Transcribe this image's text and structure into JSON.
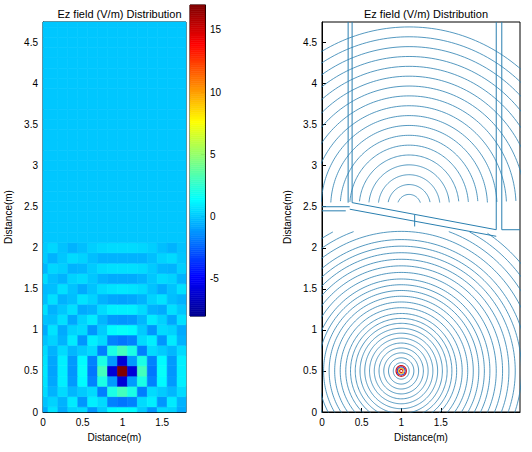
{
  "chart_data": [
    {
      "type": "heatmap",
      "title": "Ez field (V/m) Distribution",
      "x_label": "Distance(m)",
      "y_label": "Distance(m)",
      "xlim": [
        0,
        1.8
      ],
      "ylim": [
        0,
        4.75
      ],
      "xticks": [
        0,
        0.5,
        1,
        1.5
      ],
      "yticks": [
        0,
        0.5,
        1,
        1.5,
        2,
        2.5,
        3,
        3.5,
        4,
        4.5
      ],
      "x": [
        0,
        0.125,
        0.25,
        0.375,
        0.5,
        0.625,
        0.75,
        0.875,
        1,
        1.125,
        1.25,
        1.375,
        1.5,
        1.625,
        1.75
      ],
      "y": [
        0,
        0.125,
        0.25,
        0.375,
        0.5,
        0.625,
        0.75,
        0.875,
        1,
        1.125,
        1.25,
        1.375,
        1.5,
        1.625,
        1.75,
        1.875,
        2,
        2.125,
        2.25,
        2.375,
        2.5,
        2.625,
        2.75,
        2.875,
        3,
        3.125,
        3.25,
        3.375,
        3.5,
        3.625,
        3.75,
        3.875,
        4,
        4.125,
        4.25,
        4.375,
        4.5,
        4.625,
        4.75
      ],
      "z": [
        [
          -0.7,
          0.7,
          -0.7,
          0.3,
          0.5,
          -1.2,
          0.1,
          1.3,
          1.5,
          1.3,
          0.1,
          -1.2,
          0.5,
          0.3,
          -0.7
        ],
        [
          -0.1,
          0.3,
          -0.5,
          0.9,
          -1.2,
          1.0,
          0.5,
          -1.7,
          -2,
          -1.7,
          0.5,
          1.0,
          -1.2,
          0.9,
          -0.5
        ],
        [
          0.5,
          -0.5,
          0.5,
          -0.4,
          0.1,
          0.5,
          -1.8,
          2.0,
          3,
          2.0,
          -1.8,
          0.5,
          0.1,
          -0.4,
          0.5
        ],
        [
          0.7,
          -0.8,
          1.0,
          -1.1,
          1.3,
          -1.7,
          2.0,
          -1.1,
          -6,
          -1.1,
          2.0,
          -1.7,
          1.3,
          -1.1,
          1.0
        ],
        [
          0.8,
          -0.9,
          1,
          -1.2,
          1.5,
          -2,
          3,
          -6,
          17,
          -6,
          3,
          -2,
          1.5,
          -1.2,
          1
        ],
        [
          0.7,
          -0.8,
          1.0,
          -1.1,
          1.3,
          -1.7,
          2.0,
          -1.1,
          -6,
          -1.1,
          2.0,
          -1.7,
          1.3,
          -1.1,
          1.0
        ],
        [
          0.5,
          -0.5,
          0.5,
          -0.4,
          0.1,
          0.5,
          -1.8,
          2.0,
          3,
          2.0,
          -1.8,
          0.5,
          0.1,
          -0.4,
          0.5
        ],
        [
          -0.1,
          0.3,
          -0.5,
          0.9,
          -1.2,
          1.0,
          0.5,
          -1.7,
          -2,
          -1.7,
          0.5,
          1.0,
          -1.2,
          0.9,
          -0.5
        ],
        [
          -0.7,
          0.7,
          -0.7,
          0.3,
          0.5,
          -1.2,
          0.1,
          1.3,
          1.5,
          1.3,
          0.1,
          -1.2,
          0.5,
          0.3,
          -0.7
        ],
        [
          -0.1,
          -0.2,
          0.6,
          -0.8,
          0.3,
          0.9,
          -0.4,
          -1.1,
          -1.2,
          -1.1,
          -0.4,
          0.9,
          0.3,
          -0.8,
          0.6
        ],
        [
          0.6,
          -0.5,
          0,
          0.6,
          -0.7,
          -0.5,
          0.5,
          1.0,
          1,
          1.0,
          0.5,
          -0.5,
          -0.7,
          0.6,
          0
        ],
        [
          -0.2,
          0.6,
          -0.5,
          -0.2,
          0.7,
          0.3,
          -0.5,
          -0.8,
          -0.9,
          -0.8,
          -0.5,
          0.3,
          0.7,
          -0.2,
          -0.5
        ],
        [
          -0.3,
          -0.2,
          0.6,
          -0.1,
          -0.7,
          -0.1,
          0.5,
          0.7,
          0.8,
          0.7,
          0.5,
          -0.1,
          -0.7,
          -0.1,
          0.6
        ],
        [
          0.5,
          -0.2,
          -0.5,
          0.3,
          0.5,
          0,
          -0.5,
          -0.7,
          -0.7,
          -0.7,
          -0.5,
          0,
          0.5,
          0.3,
          -0.5
        ],
        [
          -0.4,
          0.4,
          0.2,
          -0.5,
          -0.4,
          0.1,
          0.5,
          0.6,
          0.6,
          0.6,
          0.5,
          0.1,
          -0.4,
          -0.5,
          0.2
        ],
        [
          0.1,
          -0.5,
          0,
          0.5,
          0.3,
          -0.2,
          -0.5,
          -0.5,
          -0.5,
          -0.5,
          -0.5,
          -0.2,
          0.3,
          0.5,
          0
        ],
        [
          0.1,
          0.4,
          -0.1,
          -0.5,
          -0.2,
          0.2,
          0.4,
          0.5,
          0.5,
          0.5,
          0.4,
          0.2,
          -0.2,
          -0.5,
          -0.1
        ],
        [
          0,
          0,
          0,
          0,
          0,
          0,
          0,
          0,
          0,
          0,
          0,
          0,
          0,
          0,
          0
        ],
        [
          0,
          0,
          0,
          0,
          0,
          0,
          0,
          0,
          0,
          0,
          0,
          0,
          0,
          0,
          0
        ],
        [
          0,
          0,
          0,
          0,
          0,
          0,
          0,
          0,
          0,
          0,
          0,
          0,
          0,
          0,
          0
        ],
        [
          0,
          0,
          0,
          0,
          0,
          0,
          0,
          0,
          0,
          0,
          0,
          0,
          0,
          0,
          0
        ],
        [
          0,
          0,
          0,
          0,
          0,
          0,
          0,
          0,
          0,
          0,
          0,
          0,
          0,
          0,
          0
        ],
        [
          0,
          0,
          0,
          0,
          0,
          0,
          0,
          0,
          0,
          0,
          0,
          0,
          0,
          0,
          0
        ],
        [
          0,
          0,
          0,
          0,
          0,
          0,
          0,
          0,
          0,
          0,
          0,
          0,
          0,
          0,
          0
        ],
        [
          0,
          0,
          0,
          0,
          0,
          0,
          0,
          0,
          0,
          0,
          0,
          0,
          0,
          0,
          0
        ],
        [
          0,
          0,
          0,
          0,
          0,
          0,
          0,
          0,
          0,
          0,
          0,
          0,
          0,
          0,
          0
        ],
        [
          0,
          0,
          0,
          0,
          0,
          0,
          0,
          0,
          0,
          0,
          0,
          0,
          0,
          0,
          0
        ],
        [
          0,
          0,
          0,
          0,
          0,
          0,
          0,
          0,
          0,
          0,
          0,
          0,
          0,
          0,
          0
        ],
        [
          0,
          0,
          0,
          0,
          0,
          0,
          0,
          0,
          0,
          0,
          0,
          0,
          0,
          0,
          0
        ],
        [
          0,
          0,
          0,
          0,
          0,
          0,
          0,
          0,
          0,
          0,
          0,
          0,
          0,
          0,
          0
        ],
        [
          0,
          0,
          0,
          0,
          0,
          0,
          0,
          0,
          0,
          0,
          0,
          0,
          0,
          0,
          0
        ],
        [
          0,
          0,
          0,
          0,
          0,
          0,
          0,
          0,
          0,
          0,
          0,
          0,
          0,
          0,
          0
        ],
        [
          0,
          0,
          0,
          0,
          0,
          0,
          0,
          0,
          0,
          0,
          0,
          0,
          0,
          0,
          0
        ],
        [
          0,
          0,
          0,
          0,
          0,
          0,
          0,
          0,
          0,
          0,
          0,
          0,
          0,
          0,
          0
        ],
        [
          0,
          0,
          0,
          0,
          0,
          0,
          0,
          0,
          0,
          0,
          0,
          0,
          0,
          0,
          0
        ],
        [
          0,
          0,
          0,
          0,
          0,
          0,
          0,
          0,
          0,
          0,
          0,
          0,
          0,
          0,
          0
        ],
        [
          0,
          0,
          0,
          0,
          0,
          0,
          0,
          0,
          0,
          0,
          0,
          0,
          0,
          0,
          0
        ],
        [
          0,
          0,
          0,
          0,
          0,
          0,
          0,
          0,
          0,
          0,
          0,
          0,
          0,
          0,
          0
        ],
        [
          0,
          0,
          0,
          0,
          0,
          0,
          0,
          0,
          0,
          0,
          0,
          0,
          0,
          0,
          0
        ]
      ],
      "colorbar": {
        "range": [
          -8,
          17
        ],
        "ticks": [
          -5,
          0,
          5,
          10,
          15
        ]
      }
    },
    {
      "type": "contour",
      "title": "Ez field (V/m) Distribution",
      "x_label": "Distance(m)",
      "y_label": "Distance(m)",
      "xlim": [
        0,
        2.5
      ],
      "ylim": [
        0,
        4.75
      ],
      "xticks": [
        0,
        0.5,
        1,
        1.5
      ],
      "yticks": [
        0,
        0.5,
        1,
        1.5,
        2,
        2.5,
        3,
        3.5,
        4,
        4.5
      ],
      "contours": [
        {
          "center": [
            1,
            0.5
          ],
          "radii": [
            0.1,
            0.16,
            0.22,
            0.28,
            0.34,
            0.4,
            0.46,
            0.52,
            0.58,
            0.64,
            0.7,
            0.77,
            0.84,
            0.91,
            0.98,
            1.05,
            1.12,
            1.2,
            1.28,
            1.36,
            1.44,
            1.52,
            1.6,
            1.7,
            1.8,
            1.9,
            2.0
          ],
          "ymax": 2.2,
          "color": "#2a7fb0"
        },
        {
          "center": [
            1.1,
            2.5
          ],
          "radii": [
            0.15,
            0.27,
            0.39,
            0.51,
            0.63,
            0.75,
            0.87,
            0.99,
            1.11,
            1.23,
            1.35,
            1.47,
            1.59,
            1.71,
            1.83,
            1.95,
            2.07,
            2.19
          ],
          "ymin": 2.55,
          "color": "#2a7fb0"
        }
      ],
      "source_rings": [
        {
          "radius": 0.02,
          "color": "#d7191c"
        },
        {
          "radius": 0.035,
          "color": "#f0c020"
        },
        {
          "radius": 0.05,
          "color": "#2c4bd6"
        },
        {
          "radius": 0.065,
          "color": "#d7191c"
        }
      ],
      "walls": {
        "color": "#2a7fb0",
        "lines": [
          [
            [
              0,
              2.5
            ],
            [
              0.35,
              2.5
            ]
          ],
          [
            [
              0,
              2.45
            ],
            [
              0.3,
              2.45
            ]
          ],
          [
            [
              0.33,
              2.55
            ],
            [
              0.33,
              4.75
            ]
          ],
          [
            [
              0.38,
              2.55
            ],
            [
              0.38,
              4.75
            ]
          ],
          [
            [
              0.38,
              2.55
            ],
            [
              2.2,
              2.22
            ]
          ],
          [
            [
              0.35,
              2.47
            ],
            [
              2.2,
              2.14
            ]
          ],
          [
            [
              2.2,
              2.22
            ],
            [
              2.2,
              4.75
            ]
          ],
          [
            [
              2.27,
              2.22
            ],
            [
              2.27,
              4.75
            ]
          ],
          [
            [
              1.17,
              2.26
            ],
            [
              1.17,
              2.4
            ]
          ],
          [
            [
              2.27,
              2.22
            ],
            [
              2.5,
              2.22
            ]
          ]
        ]
      }
    }
  ]
}
